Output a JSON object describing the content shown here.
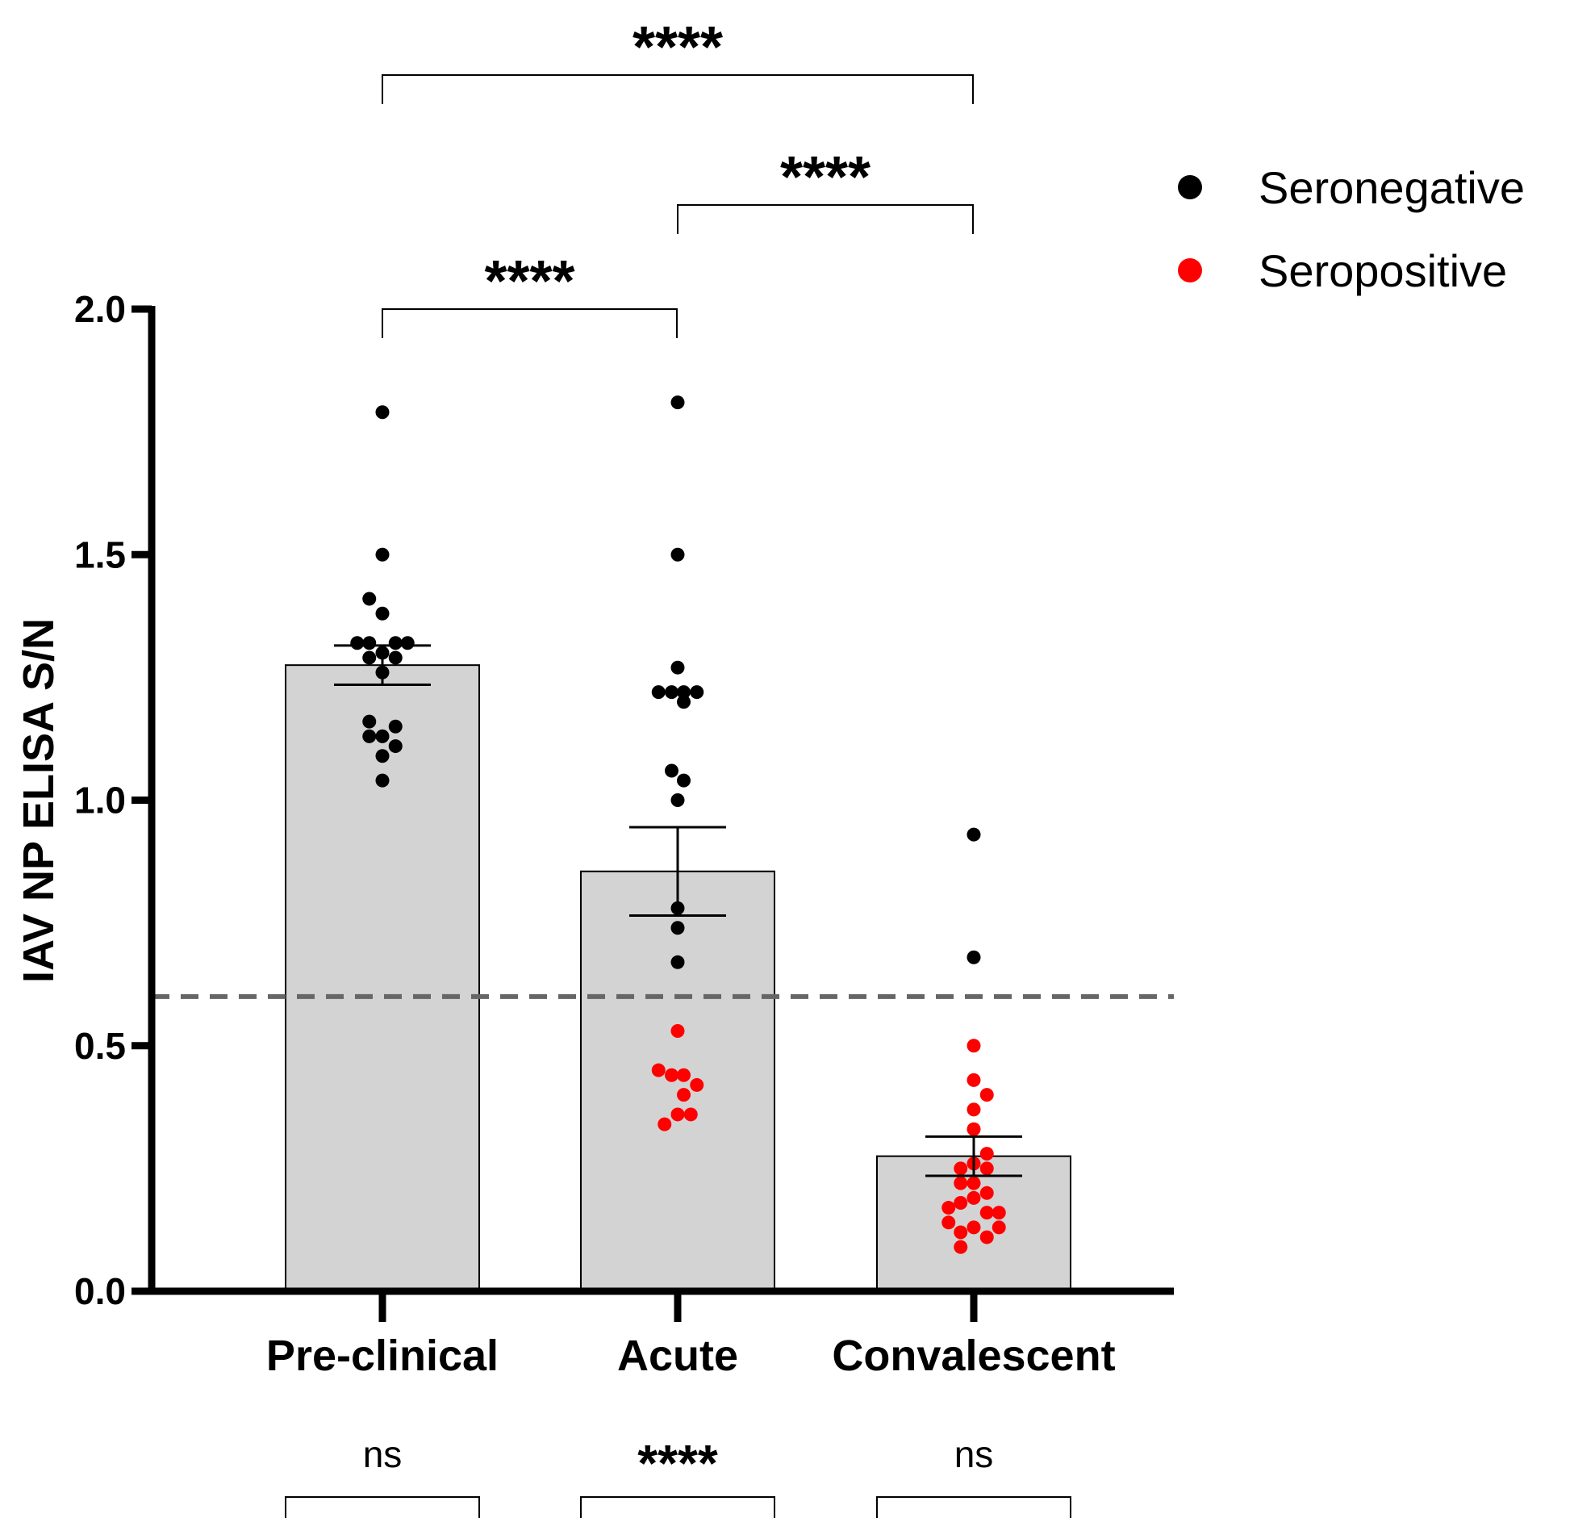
{
  "chart_data": {
    "type": "bar",
    "ylabel": "IAV NP ELISA S/N",
    "xlabel": "",
    "ylim": [
      0,
      2.0
    ],
    "yticks": [
      "0.0",
      "0.5",
      "1.0",
      "1.5",
      "2.0"
    ],
    "cutoff": 0.6,
    "categories": [
      "Pre-clinical",
      "Acute",
      "Convalescent"
    ],
    "bars": [
      {
        "category": "Pre-clinical",
        "mean": 1.275,
        "sem_low": 1.235,
        "sem_high": 1.315
      },
      {
        "category": "Acute",
        "mean": 0.855,
        "sem_low": 0.765,
        "sem_high": 0.945
      },
      {
        "category": "Convalescent",
        "mean": 0.275,
        "sem_low": 0.235,
        "sem_high": 0.315
      }
    ],
    "colors": {
      "bar_fill": "#d3d3d3",
      "seronegative": "#000000",
      "seropositive": "#ff0000",
      "cutoff_line": "#666666"
    },
    "legend": [
      {
        "label": "Seronegative",
        "color": "#000000"
      },
      {
        "label": "Seropositive",
        "color": "#ff0000"
      }
    ],
    "points": [
      {
        "group": 0,
        "dx": 0.0,
        "y": 1.79,
        "s": "neg"
      },
      {
        "group": 0,
        "dx": 0.0,
        "y": 1.5,
        "s": "neg"
      },
      {
        "group": 0,
        "dx": -0.13,
        "y": 1.41,
        "s": "neg"
      },
      {
        "group": 0,
        "dx": 0.0,
        "y": 1.38,
        "s": "neg"
      },
      {
        "group": 0,
        "dx": -0.25,
        "y": 1.32,
        "s": "neg"
      },
      {
        "group": 0,
        "dx": -0.13,
        "y": 1.32,
        "s": "neg"
      },
      {
        "group": 0,
        "dx": 0.13,
        "y": 1.32,
        "s": "neg"
      },
      {
        "group": 0,
        "dx": 0.25,
        "y": 1.32,
        "s": "neg"
      },
      {
        "group": 0,
        "dx": -0.13,
        "y": 1.29,
        "s": "neg"
      },
      {
        "group": 0,
        "dx": 0.0,
        "y": 1.3,
        "s": "neg"
      },
      {
        "group": 0,
        "dx": 0.13,
        "y": 1.29,
        "s": "neg"
      },
      {
        "group": 0,
        "dx": 0.0,
        "y": 1.26,
        "s": "neg"
      },
      {
        "group": 0,
        "dx": -0.13,
        "y": 1.16,
        "s": "neg"
      },
      {
        "group": 0,
        "dx": 0.13,
        "y": 1.15,
        "s": "neg"
      },
      {
        "group": 0,
        "dx": -0.13,
        "y": 1.13,
        "s": "neg"
      },
      {
        "group": 0,
        "dx": 0.0,
        "y": 1.13,
        "s": "neg"
      },
      {
        "group": 0,
        "dx": 0.13,
        "y": 1.11,
        "s": "neg"
      },
      {
        "group": 0,
        "dx": 0.0,
        "y": 1.09,
        "s": "neg"
      },
      {
        "group": 0,
        "dx": 0.0,
        "y": 1.04,
        "s": "neg"
      },
      {
        "group": 1,
        "dx": 0.0,
        "y": 1.81,
        "s": "neg"
      },
      {
        "group": 1,
        "dx": 0.0,
        "y": 1.5,
        "s": "neg"
      },
      {
        "group": 1,
        "dx": 0.0,
        "y": 1.27,
        "s": "neg"
      },
      {
        "group": 1,
        "dx": -0.19,
        "y": 1.22,
        "s": "neg"
      },
      {
        "group": 1,
        "dx": -0.06,
        "y": 1.22,
        "s": "neg"
      },
      {
        "group": 1,
        "dx": 0.06,
        "y": 1.22,
        "s": "neg"
      },
      {
        "group": 1,
        "dx": 0.19,
        "y": 1.22,
        "s": "neg"
      },
      {
        "group": 1,
        "dx": 0.06,
        "y": 1.2,
        "s": "neg"
      },
      {
        "group": 1,
        "dx": -0.06,
        "y": 1.06,
        "s": "neg"
      },
      {
        "group": 1,
        "dx": 0.06,
        "y": 1.04,
        "s": "neg"
      },
      {
        "group": 1,
        "dx": 0.0,
        "y": 1.0,
        "s": "neg"
      },
      {
        "group": 1,
        "dx": 0.0,
        "y": 0.78,
        "s": "neg"
      },
      {
        "group": 1,
        "dx": 0.0,
        "y": 0.74,
        "s": "neg"
      },
      {
        "group": 1,
        "dx": 0.0,
        "y": 0.67,
        "s": "neg"
      },
      {
        "group": 1,
        "dx": 0.0,
        "y": 0.53,
        "s": "pos"
      },
      {
        "group": 1,
        "dx": -0.19,
        "y": 0.45,
        "s": "pos"
      },
      {
        "group": 1,
        "dx": -0.06,
        "y": 0.44,
        "s": "pos"
      },
      {
        "group": 1,
        "dx": 0.06,
        "y": 0.44,
        "s": "pos"
      },
      {
        "group": 1,
        "dx": 0.19,
        "y": 0.42,
        "s": "pos"
      },
      {
        "group": 1,
        "dx": 0.06,
        "y": 0.4,
        "s": "pos"
      },
      {
        "group": 1,
        "dx": 0.0,
        "y": 0.36,
        "s": "pos"
      },
      {
        "group": 1,
        "dx": 0.13,
        "y": 0.36,
        "s": "pos"
      },
      {
        "group": 1,
        "dx": -0.13,
        "y": 0.34,
        "s": "pos"
      },
      {
        "group": 2,
        "dx": 0.0,
        "y": 0.93,
        "s": "neg"
      },
      {
        "group": 2,
        "dx": 0.0,
        "y": 0.68,
        "s": "neg"
      },
      {
        "group": 2,
        "dx": 0.0,
        "y": 0.5,
        "s": "pos"
      },
      {
        "group": 2,
        "dx": 0.0,
        "y": 0.43,
        "s": "pos"
      },
      {
        "group": 2,
        "dx": 0.13,
        "y": 0.4,
        "s": "pos"
      },
      {
        "group": 2,
        "dx": 0.0,
        "y": 0.37,
        "s": "pos"
      },
      {
        "group": 2,
        "dx": 0.0,
        "y": 0.33,
        "s": "pos"
      },
      {
        "group": 2,
        "dx": 0.13,
        "y": 0.28,
        "s": "pos"
      },
      {
        "group": 2,
        "dx": -0.13,
        "y": 0.25,
        "s": "pos"
      },
      {
        "group": 2,
        "dx": 0.0,
        "y": 0.26,
        "s": "pos"
      },
      {
        "group": 2,
        "dx": 0.13,
        "y": 0.25,
        "s": "pos"
      },
      {
        "group": 2,
        "dx": -0.13,
        "y": 0.22,
        "s": "pos"
      },
      {
        "group": 2,
        "dx": 0.0,
        "y": 0.22,
        "s": "pos"
      },
      {
        "group": 2,
        "dx": 0.13,
        "y": 0.2,
        "s": "pos"
      },
      {
        "group": 2,
        "dx": -0.13,
        "y": 0.18,
        "s": "pos"
      },
      {
        "group": 2,
        "dx": 0.0,
        "y": 0.19,
        "s": "pos"
      },
      {
        "group": 2,
        "dx": -0.25,
        "y": 0.17,
        "s": "pos"
      },
      {
        "group": 2,
        "dx": 0.25,
        "y": 0.16,
        "s": "pos"
      },
      {
        "group": 2,
        "dx": 0.13,
        "y": 0.16,
        "s": "pos"
      },
      {
        "group": 2,
        "dx": -0.25,
        "y": 0.14,
        "s": "pos"
      },
      {
        "group": 2,
        "dx": 0.0,
        "y": 0.13,
        "s": "pos"
      },
      {
        "group": 2,
        "dx": 0.25,
        "y": 0.13,
        "s": "pos"
      },
      {
        "group": 2,
        "dx": -0.13,
        "y": 0.12,
        "s": "pos"
      },
      {
        "group": 2,
        "dx": 0.13,
        "y": 0.11,
        "s": "pos"
      },
      {
        "group": 2,
        "dx": -0.13,
        "y": 0.09,
        "s": "pos"
      }
    ],
    "comparisons": [
      {
        "from": 0,
        "to": 2,
        "label": "****",
        "level": 2
      },
      {
        "from": 1,
        "to": 2,
        "label": "****",
        "level": 1
      },
      {
        "from": 0,
        "to": 1,
        "label": "****",
        "level": 0
      }
    ],
    "bottom_annotations": [
      {
        "group": 0,
        "label": "ns"
      },
      {
        "group": 1,
        "label": "****"
      },
      {
        "group": 2,
        "label": "ns"
      }
    ]
  }
}
